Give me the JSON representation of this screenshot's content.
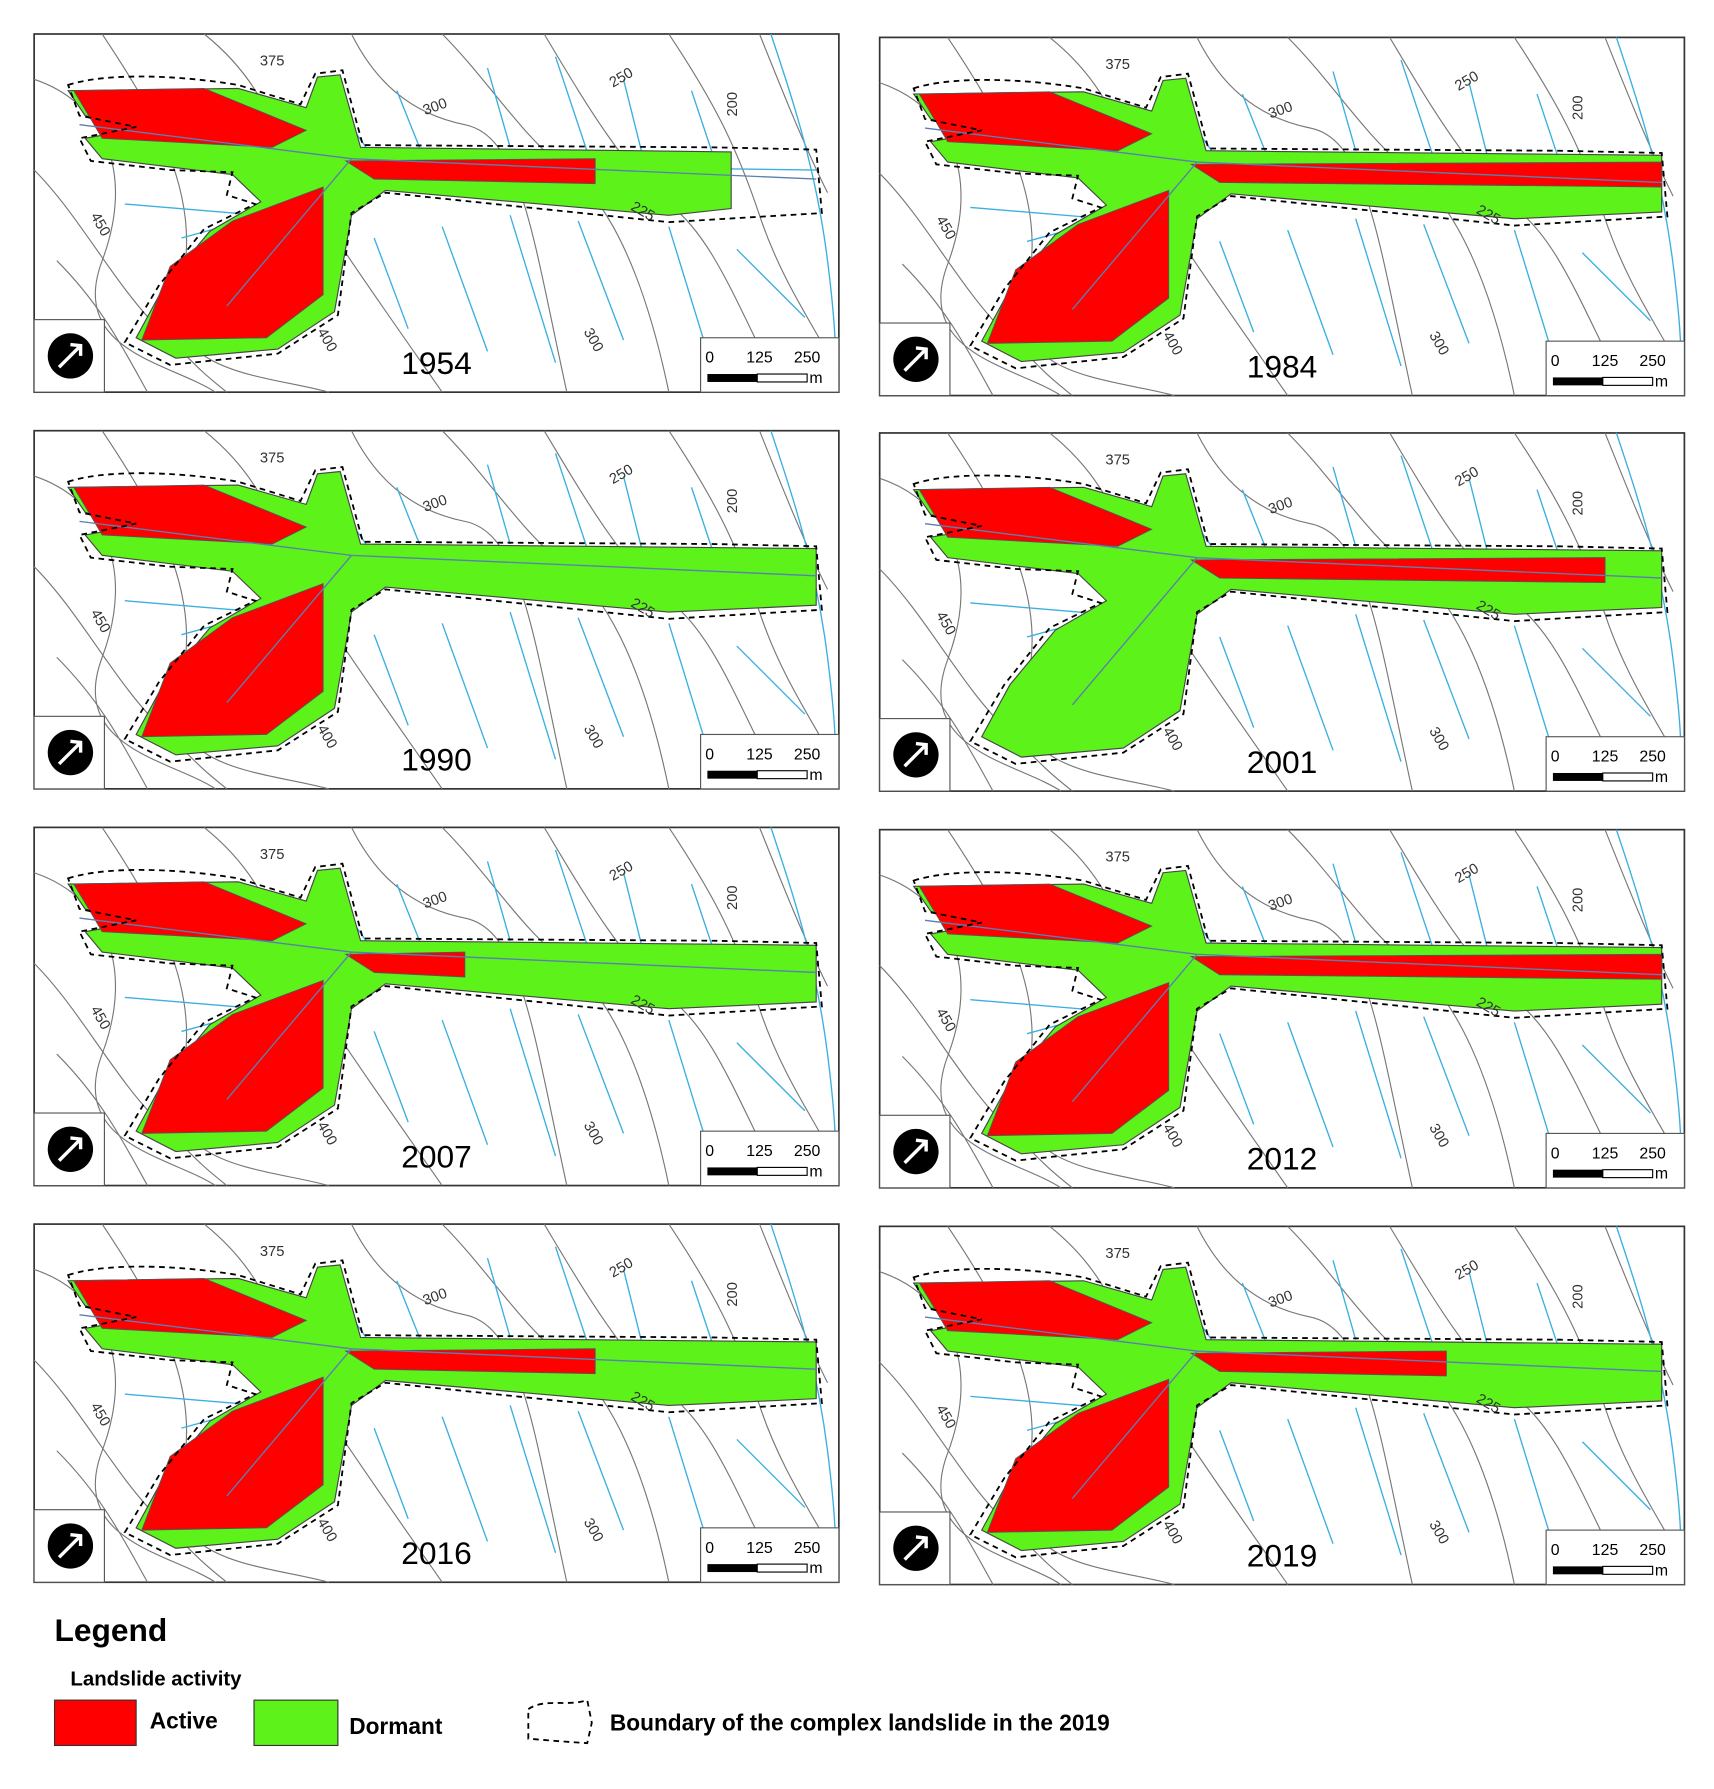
{
  "panels": [
    {
      "year": "1954"
    },
    {
      "year": "1984"
    },
    {
      "year": "1990"
    },
    {
      "year": "2001"
    },
    {
      "year": "2007"
    },
    {
      "year": "2012"
    },
    {
      "year": "2016"
    },
    {
      "year": "2019"
    }
  ],
  "contour_labels": [
    "375",
    "300",
    "250",
    "200",
    "450",
    "225",
    "400",
    "300"
  ],
  "scale_bar": {
    "ticks": [
      "0",
      "125",
      "250"
    ],
    "unit": "m"
  },
  "legend": {
    "title": "Legend",
    "subtitle": "Landslide activity",
    "items": [
      "Active",
      "Dormant",
      "Boundary of the complex landslide in the 2019"
    ]
  }
}
